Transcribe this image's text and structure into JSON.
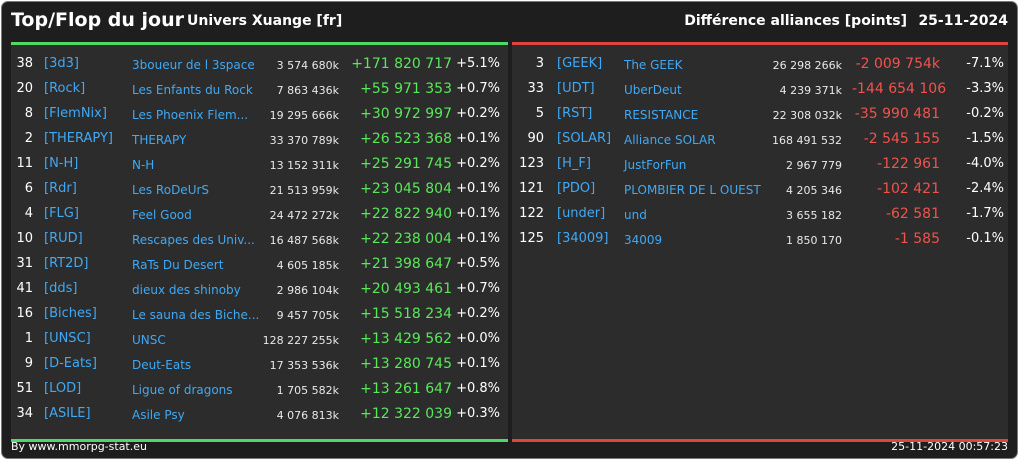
{
  "header": {
    "title": "Top/Flop du jour",
    "universe": "Univers Xuange [fr]",
    "metric": "Différence alliances [points]",
    "date": "25-11-2024"
  },
  "colors": {
    "top_accent": "#4cd964",
    "flop_accent": "#e0443f",
    "tag": "#3fa9f5",
    "positive": "#58e85a",
    "negative": "#f0524c"
  },
  "top": [
    {
      "rank": "38",
      "tag": "[3d3]",
      "name": "3boueur de l 3space",
      "score": "3 574 680k",
      "diff": "+171 820 717",
      "pct": "+5.1%"
    },
    {
      "rank": "20",
      "tag": "[Rock]",
      "name": "Les Enfants du Rock",
      "score": "7 863 436k",
      "diff": "+55 971 353",
      "pct": "+0.7%"
    },
    {
      "rank": "8",
      "tag": "[FlemNix]",
      "name": "Les Phoenix Flem...",
      "score": "19 295 666k",
      "diff": "+30 972 997",
      "pct": "+0.2%"
    },
    {
      "rank": "2",
      "tag": "[THERAPY]",
      "name": "THERAPY",
      "score": "33 370 789k",
      "diff": "+26 523 368",
      "pct": "+0.1%"
    },
    {
      "rank": "11",
      "tag": "[N-H]",
      "name": "N-H",
      "score": "13 152 311k",
      "diff": "+25 291 745",
      "pct": "+0.2%"
    },
    {
      "rank": "6",
      "tag": "[Rdr]",
      "name": "Les RoDeUrS",
      "score": "21 513 959k",
      "diff": "+23 045 804",
      "pct": "+0.1%"
    },
    {
      "rank": "4",
      "tag": "[FLG]",
      "name": "Feel Good",
      "score": "24 472 272k",
      "diff": "+22 822 940",
      "pct": "+0.1%"
    },
    {
      "rank": "10",
      "tag": "[RUD]",
      "name": "Rescapes des Univ...",
      "score": "16 487 568k",
      "diff": "+22 238 004",
      "pct": "+0.1%"
    },
    {
      "rank": "31",
      "tag": "[RT2D]",
      "name": "RaTs Du Desert",
      "score": "4 605 185k",
      "diff": "+21 398 647",
      "pct": "+0.5%"
    },
    {
      "rank": "41",
      "tag": "[dds]",
      "name": "dieux des shinoby",
      "score": "2 986 104k",
      "diff": "+20 493 461",
      "pct": "+0.7%"
    },
    {
      "rank": "16",
      "tag": "[Biches]",
      "name": "Le sauna des Biche...",
      "score": "9 457 705k",
      "diff": "+15 518 234",
      "pct": "+0.2%"
    },
    {
      "rank": "1",
      "tag": "[UNSC]",
      "name": "UNSC",
      "score": "128 227 255k",
      "diff": "+13 429 562",
      "pct": "+0.0%"
    },
    {
      "rank": "9",
      "tag": "[D-Eats]",
      "name": "Deut-Eats",
      "score": "17 353 536k",
      "diff": "+13 280 745",
      "pct": "+0.1%"
    },
    {
      "rank": "51",
      "tag": "[LOD]",
      "name": "Ligue of dragons",
      "score": "1 705 582k",
      "diff": "+13 261 647",
      "pct": "+0.8%"
    },
    {
      "rank": "34",
      "tag": "[ASILE]",
      "name": "Asile Psy",
      "score": "4 076 813k",
      "diff": "+12 322 039",
      "pct": "+0.3%"
    }
  ],
  "flop": [
    {
      "rank": "3",
      "tag": "[GEEK]",
      "name": "The GEEK",
      "score": "26 298 266k",
      "diff": "-2 009 754k",
      "pct": "-7.1%"
    },
    {
      "rank": "33",
      "tag": "[UDT]",
      "name": "UberDeut",
      "score": "4 239 371k",
      "diff": "-144 654 106",
      "pct": "-3.3%"
    },
    {
      "rank": "5",
      "tag": "[RST]",
      "name": "RESISTANCE",
      "score": "22 308 032k",
      "diff": "-35 990 481",
      "pct": "-0.2%"
    },
    {
      "rank": "90",
      "tag": "[SOLAR]",
      "name": "Alliance SOLAR",
      "score": "168 491 532",
      "diff": "-2 545 155",
      "pct": "-1.5%"
    },
    {
      "rank": "123",
      "tag": "[H_F]",
      "name": "JustForFun",
      "score": "2 967 779",
      "diff": "-122 961",
      "pct": "-4.0%"
    },
    {
      "rank": "121",
      "tag": "[PDO]",
      "name": "PLOMBIER DE L OUEST",
      "score": "4 205 346",
      "diff": "-102 421",
      "pct": "-2.4%"
    },
    {
      "rank": "122",
      "tag": "[under]",
      "name": "und",
      "score": "3 655 182",
      "diff": "-62 581",
      "pct": "-1.7%"
    },
    {
      "rank": "125",
      "tag": "[34009]",
      "name": "34009",
      "score": "1 850 170",
      "diff": "-1 585",
      "pct": "-0.1%"
    }
  ],
  "footer": {
    "source": "By www.mmorpg-stat.eu",
    "timestamp": "25-11-2024 00:57:23"
  }
}
